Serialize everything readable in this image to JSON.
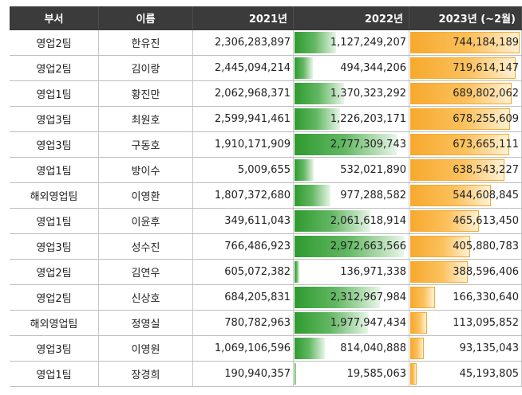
{
  "headers": {
    "dept": "부서",
    "name": "이름",
    "y2021": "2021년",
    "y2022": "2022년",
    "y2023": "2023년 (~2월)"
  },
  "colors": {
    "header_bg": "#3b3b3b",
    "header_text": "#ffffff",
    "bar_2022": "#2f9a2f",
    "bar_2023": "#f7a92d",
    "gridline": "#bdbdbd"
  },
  "rows": [
    {
      "dept": "영업2팀",
      "name": "한유진",
      "y2021": "2,306,283,897",
      "y2022": "1,127,249,207",
      "y2023": "744,184,189",
      "bar2022": 0.365,
      "bar2023": 0.99
    },
    {
      "dept": "영업2팀",
      "name": "김이랑",
      "y2021": "2,445,094,214",
      "y2022": "494,344,206",
      "y2023": "719,614,147",
      "bar2022": 0.16,
      "bar2023": 0.96
    },
    {
      "dept": "영업1팀",
      "name": "황진만",
      "y2021": "2,062,968,371",
      "y2022": "1,370,323,292",
      "y2023": "689,802,062",
      "bar2022": 0.44,
      "bar2023": 0.92
    },
    {
      "dept": "영업3팀",
      "name": "최원호",
      "y2021": "2,599,941,461",
      "y2022": "1,226,203,171",
      "y2023": "678,255,609",
      "bar2022": 0.4,
      "bar2023": 0.905
    },
    {
      "dept": "영업3팀",
      "name": "구동호",
      "y2021": "1,910,171,909",
      "y2022": "2,777,309,743",
      "y2023": "673,665,111",
      "bar2022": 0.9,
      "bar2023": 0.9
    },
    {
      "dept": "영업1팀",
      "name": "방이수",
      "y2021": "5,009,655",
      "y2022": "532,021,890",
      "y2023": "638,543,227",
      "bar2022": 0.17,
      "bar2023": 0.855
    },
    {
      "dept": "해외영업팀",
      "name": "이영환",
      "y2021": "1,807,372,680",
      "y2022": "977,288,582",
      "y2023": "544,608,845",
      "bar2022": 0.32,
      "bar2023": 0.73
    },
    {
      "dept": "영업1팀",
      "name": "이윤후",
      "y2021": "349,611,043",
      "y2022": "2,061,618,914",
      "y2023": "465,613,450",
      "bar2022": 0.67,
      "bar2023": 0.625
    },
    {
      "dept": "영업3팀",
      "name": "성수진",
      "y2021": "766,486,923",
      "y2022": "2,972,663,566",
      "y2023": "405,880,783",
      "bar2022": 0.965,
      "bar2023": 0.545
    },
    {
      "dept": "영업2팀",
      "name": "김연우",
      "y2021": "605,072,382",
      "y2022": "136,971,338",
      "y2023": "388,596,406",
      "bar2022": 0.044,
      "bar2023": 0.52
    },
    {
      "dept": "영업2팀",
      "name": "신상호",
      "y2021": "684,205,831",
      "y2022": "2,312,967,984",
      "y2023": "166,330,640",
      "bar2022": 0.75,
      "bar2023": 0.222
    },
    {
      "dept": "해외영업팀",
      "name": "정영실",
      "y2021": "780,782,963",
      "y2022": "1,977,947,434",
      "y2023": "113,095,852",
      "bar2022": 0.645,
      "bar2023": 0.151
    },
    {
      "dept": "영업3팀",
      "name": "이영원",
      "y2021": "1,069,106,596",
      "y2022": "814,040,888",
      "y2023": "93,135,043",
      "bar2022": 0.265,
      "bar2023": 0.125
    },
    {
      "dept": "영업1팀",
      "name": "장경희",
      "y2021": "190,940,357",
      "y2022": "19,585,063",
      "y2023": "45,193,805",
      "bar2022": 0.006,
      "bar2023": 0.06
    }
  ]
}
